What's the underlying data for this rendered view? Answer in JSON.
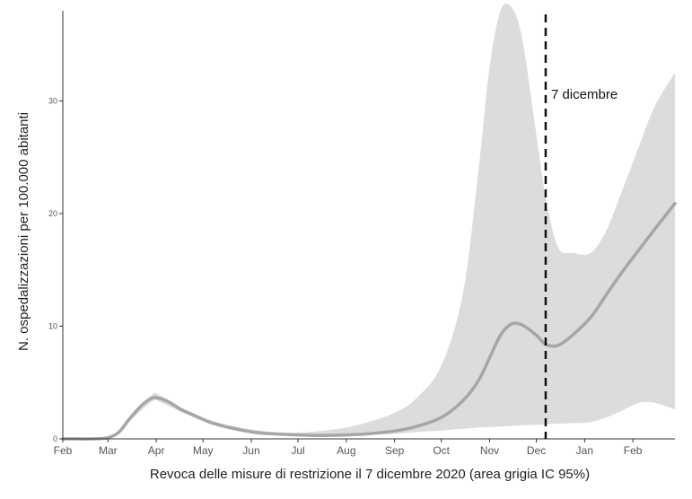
{
  "chart_data": {
    "type": "area",
    "xlabel": "Revoca delle misure di restrizione il 7 dicembre 2020 (area grigia IC 95%)",
    "ylabel": "N. ospedalizzazioni per 100.000 abitanti",
    "x_tick_labels": [
      "Feb",
      "Mar",
      "Apr",
      "May",
      "Jun",
      "Jul",
      "Aug",
      "Sep",
      "Oct",
      "Nov",
      "Dec",
      "Jan",
      "Feb"
    ],
    "y_ticks": [
      0,
      10,
      20,
      30
    ],
    "ylim": [
      0,
      38
    ],
    "xlim": [
      "2020-02-01",
      "2021-02-28"
    ],
    "grid": false,
    "colors": {
      "line": "#a6a6a6",
      "band": "#dcdcdc",
      "marker": "#111111"
    },
    "annotation": {
      "x": "2020-12-07",
      "label": "7 dicembre",
      "style": "dashed"
    },
    "series": [
      {
        "x": [
          "2020-02-01",
          "2020-02-10",
          "2020-02-20",
          "2020-03-01",
          "2020-03-08",
          "2020-03-15",
          "2020-03-22",
          "2020-03-29",
          "2020-04-03",
          "2020-04-10",
          "2020-04-17",
          "2020-04-25",
          "2020-05-05",
          "2020-05-15",
          "2020-05-25",
          "2020-06-05",
          "2020-06-15",
          "2020-07-01",
          "2020-07-15",
          "2020-08-01",
          "2020-08-15",
          "2020-09-01",
          "2020-09-15",
          "2020-10-01",
          "2020-10-15",
          "2020-10-25",
          "2020-11-01",
          "2020-11-08",
          "2020-11-15",
          "2020-11-22",
          "2020-12-01",
          "2020-12-07",
          "2020-12-15",
          "2020-12-25",
          "2021-01-05",
          "2021-01-15",
          "2021-01-25",
          "2021-02-05",
          "2021-02-15",
          "2021-02-28"
        ],
        "values": [
          0,
          0,
          0,
          0.1,
          0.6,
          1.8,
          2.9,
          3.6,
          3.6,
          3.2,
          2.6,
          2.1,
          1.5,
          1.1,
          0.8,
          0.55,
          0.45,
          0.35,
          0.3,
          0.35,
          0.45,
          0.7,
          1.1,
          1.9,
          3.4,
          5.2,
          7.2,
          9.2,
          10.2,
          10.1,
          9.2,
          8.4,
          8.3,
          9.3,
          10.8,
          12.8,
          14.8,
          16.8,
          18.6,
          20.9
        ]
      }
    ],
    "band": {
      "x": [
        "2020-02-01",
        "2020-03-01",
        "2020-03-15",
        "2020-03-29",
        "2020-04-03",
        "2020-04-17",
        "2020-05-05",
        "2020-05-25",
        "2020-06-15",
        "2020-07-01",
        "2020-07-15",
        "2020-08-01",
        "2020-08-15",
        "2020-09-01",
        "2020-09-15",
        "2020-10-01",
        "2020-10-15",
        "2020-10-25",
        "2020-11-01",
        "2020-11-08",
        "2020-11-15",
        "2020-11-22",
        "2020-12-01",
        "2020-12-07",
        "2020-12-15",
        "2020-12-25",
        "2021-01-05",
        "2021-01-15",
        "2021-01-25",
        "2021-02-05",
        "2021-02-15",
        "2021-02-28"
      ],
      "lower": [
        0,
        0,
        1.6,
        3.3,
        3.3,
        2.4,
        1.4,
        0.75,
        0.4,
        0.3,
        0.3,
        0.3,
        0.35,
        0.45,
        0.6,
        0.75,
        0.9,
        1.0,
        1.05,
        1.1,
        1.15,
        1.2,
        1.25,
        1.3,
        1.35,
        1.4,
        1.5,
        1.9,
        2.5,
        3.2,
        3.2,
        2.6
      ],
      "upper": [
        0,
        0.15,
        2.0,
        3.9,
        3.9,
        2.8,
        1.7,
        1.0,
        0.6,
        0.55,
        0.7,
        1.0,
        1.5,
        2.3,
        3.6,
        6.5,
        13.0,
        24.0,
        33.0,
        38.0,
        38.5,
        35.5,
        27.0,
        21.5,
        17.0,
        16.5,
        16.5,
        18.5,
        22.0,
        26.0,
        29.5,
        32.5
      ]
    }
  }
}
